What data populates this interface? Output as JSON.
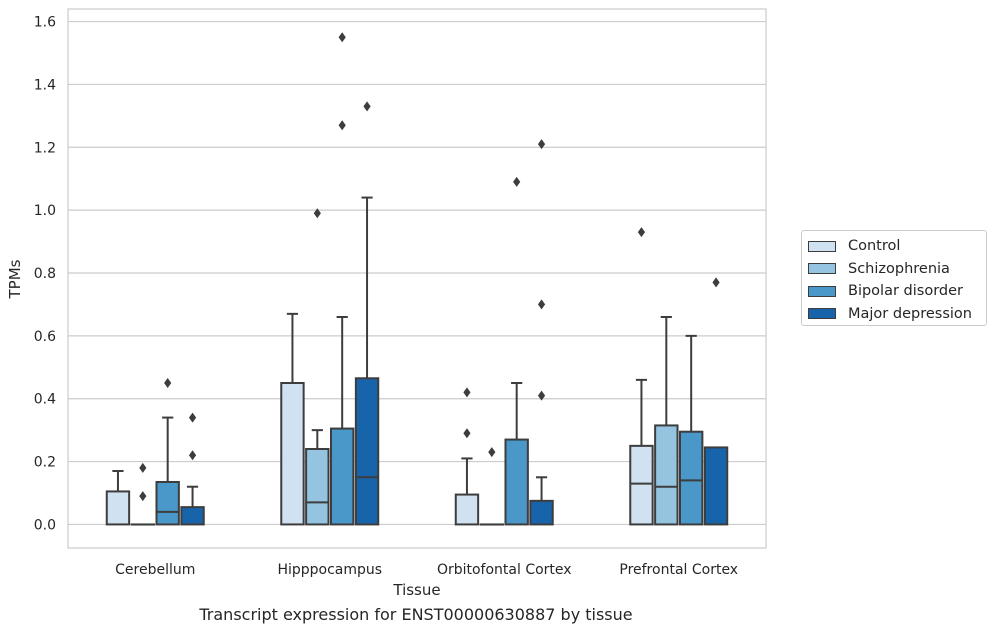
{
  "caption": "Transcript expression for ENST00000630887 by tissue",
  "chart_data": {
    "type": "boxplot",
    "xlabel": "Tissue",
    "ylabel": "TPMs",
    "ylim": [
      -0.075,
      1.64
    ],
    "yticks": [
      0.0,
      0.2,
      0.4,
      0.6,
      0.8,
      1.0,
      1.2,
      1.4,
      1.6
    ],
    "ytick_labels": [
      "0.0",
      "0.2",
      "0.4",
      "0.6",
      "0.8",
      "1.0",
      "1.2",
      "1.4",
      "1.6"
    ],
    "grid": true,
    "legend_position": "right",
    "categories": [
      "Cerebellum",
      "Hipppocampus",
      "Orbitofontal Cortex",
      "Prefrontal Cortex"
    ],
    "series": [
      {
        "name": "Control",
        "color": "#d0e1f2",
        "boxes": [
          {
            "q1": 0.0,
            "median": 0.0,
            "q3": 0.105,
            "whisker_low": 0.0,
            "whisker_high": 0.17,
            "outliers": []
          },
          {
            "q1": 0.0,
            "median": 0.0,
            "q3": 0.45,
            "whisker_low": 0.0,
            "whisker_high": 0.67,
            "outliers": []
          },
          {
            "q1": 0.0,
            "median": 0.0,
            "q3": 0.095,
            "whisker_low": 0.0,
            "whisker_high": 0.21,
            "outliers": [
              0.29,
              0.42
            ]
          },
          {
            "q1": 0.0,
            "median": 0.13,
            "q3": 0.25,
            "whisker_low": 0.0,
            "whisker_high": 0.46,
            "outliers": [
              0.93
            ]
          }
        ]
      },
      {
        "name": "Schizophrenia",
        "color": "#94c4df",
        "boxes": [
          {
            "q1": 0.0,
            "median": 0.0,
            "q3": 0.0,
            "whisker_low": 0.0,
            "whisker_high": 0.0,
            "outliers": [
              0.09,
              0.18
            ]
          },
          {
            "q1": 0.0,
            "median": 0.07,
            "q3": 0.24,
            "whisker_low": 0.0,
            "whisker_high": 0.3,
            "outliers": [
              0.99
            ]
          },
          {
            "q1": 0.0,
            "median": 0.0,
            "q3": 0.0,
            "whisker_low": 0.0,
            "whisker_high": 0.0,
            "outliers": [
              0.23
            ]
          },
          {
            "q1": 0.0,
            "median": 0.12,
            "q3": 0.315,
            "whisker_low": 0.0,
            "whisker_high": 0.66,
            "outliers": []
          }
        ]
      },
      {
        "name": "Bipolar disorder",
        "color": "#4a98c9",
        "boxes": [
          {
            "q1": 0.0,
            "median": 0.04,
            "q3": 0.135,
            "whisker_low": 0.0,
            "whisker_high": 0.34,
            "outliers": [
              0.45
            ]
          },
          {
            "q1": 0.0,
            "median": 0.0,
            "q3": 0.305,
            "whisker_low": 0.0,
            "whisker_high": 0.66,
            "outliers": [
              1.27,
              1.55
            ]
          },
          {
            "q1": 0.0,
            "median": 0.0,
            "q3": 0.27,
            "whisker_low": 0.0,
            "whisker_high": 0.45,
            "outliers": [
              1.09
            ]
          },
          {
            "q1": 0.0,
            "median": 0.14,
            "q3": 0.295,
            "whisker_low": 0.0,
            "whisker_high": 0.6,
            "outliers": []
          }
        ]
      },
      {
        "name": "Major depression",
        "color": "#1764ab",
        "boxes": [
          {
            "q1": 0.0,
            "median": 0.0,
            "q3": 0.055,
            "whisker_low": 0.0,
            "whisker_high": 0.12,
            "outliers": [
              0.22,
              0.34
            ]
          },
          {
            "q1": 0.0,
            "median": 0.15,
            "q3": 0.465,
            "whisker_low": 0.0,
            "whisker_high": 1.04,
            "outliers": [
              1.33
            ]
          },
          {
            "q1": 0.0,
            "median": 0.0,
            "q3": 0.075,
            "whisker_low": 0.0,
            "whisker_high": 0.15,
            "outliers": [
              0.41,
              0.7,
              1.21
            ]
          },
          {
            "q1": 0.0,
            "median": 0.0,
            "q3": 0.245,
            "whisker_low": 0.0,
            "whisker_high": 0.245,
            "outliers": [
              0.77
            ]
          }
        ]
      }
    ]
  }
}
